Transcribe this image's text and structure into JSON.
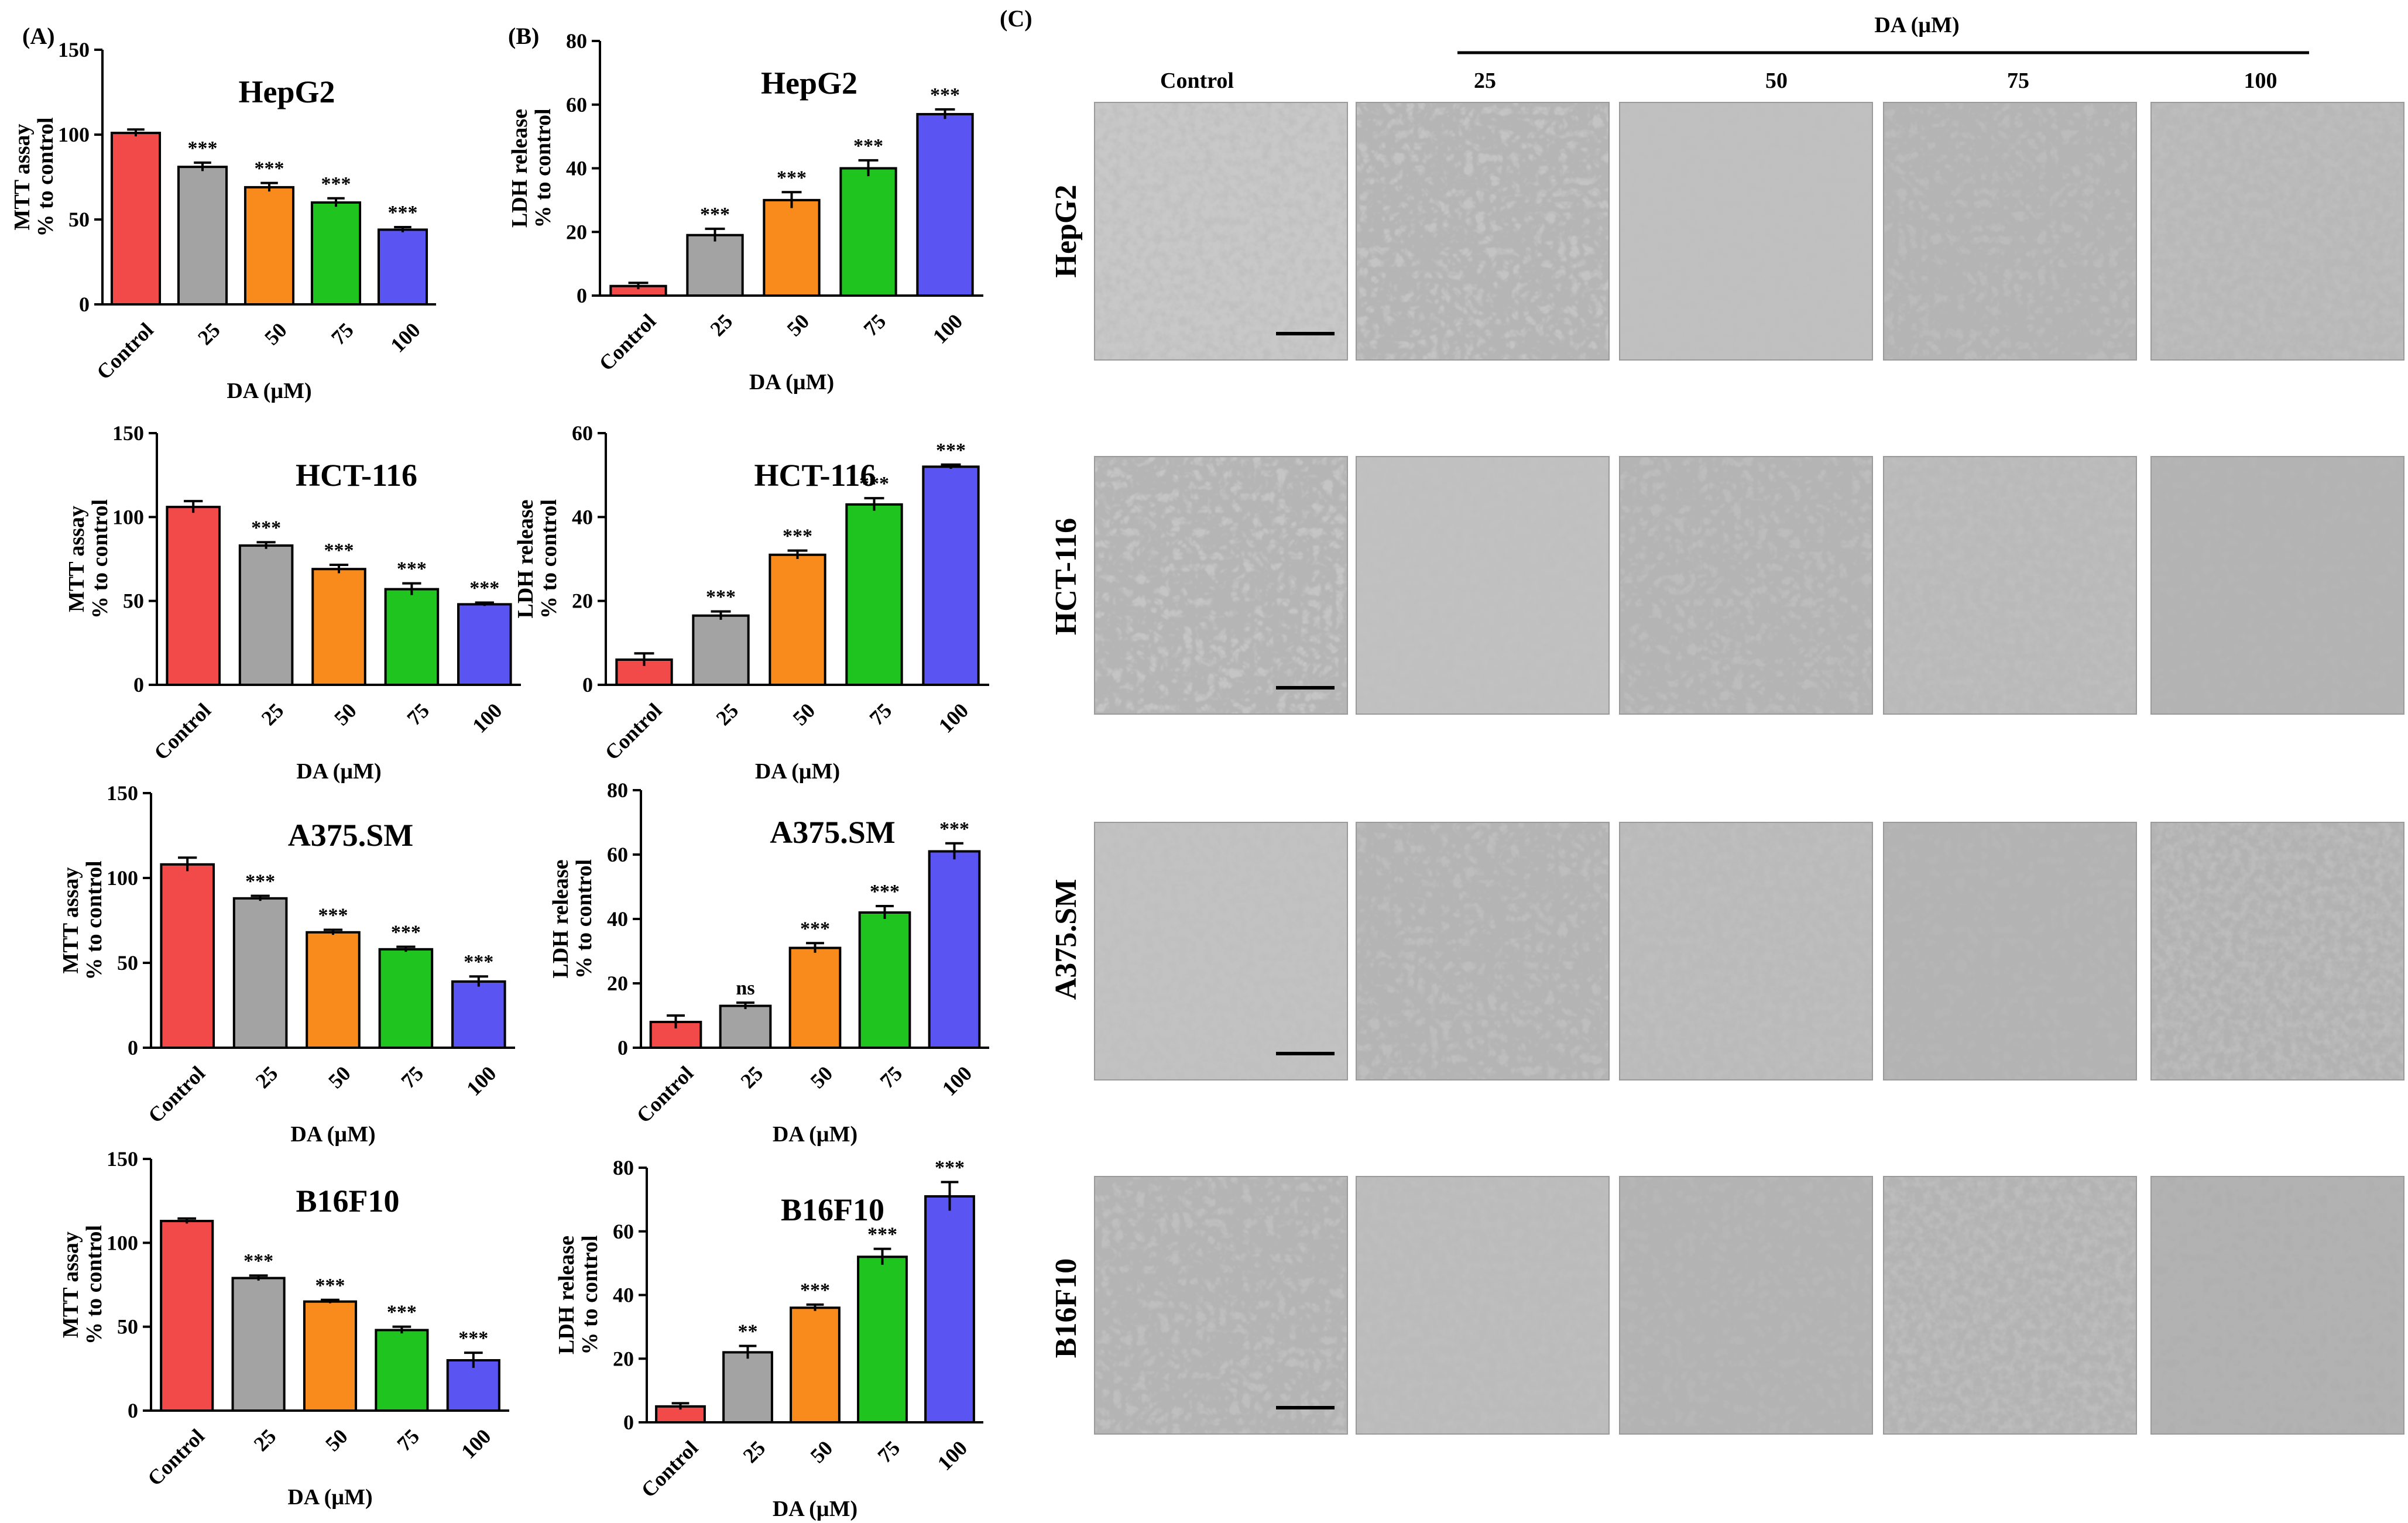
{
  "panels": {
    "a": "(A)",
    "b": "(B)",
    "c": "(C)"
  },
  "micrographs": {
    "header": "DA (µM)",
    "columns": [
      "Control",
      "25",
      "50",
      "75",
      "100"
    ],
    "rows": [
      "HepG2",
      "HCT-116",
      "A375.SM",
      "B16F10"
    ]
  },
  "chart_data": [
    {
      "type": "bar",
      "panel": "A",
      "title": "HepG2",
      "xlabel": "DA (µM)",
      "ylabel_lines": [
        "MTT assay",
        "% to control"
      ],
      "categories": [
        "Control",
        "25",
        "50",
        "75",
        "100"
      ],
      "values": [
        101,
        81,
        69,
        60,
        44
      ],
      "errors": [
        2,
        2.5,
        2.5,
        2.5,
        1.5
      ],
      "significance": [
        "",
        "***",
        "***",
        "***",
        "***"
      ],
      "ylim": [
        0,
        150
      ],
      "yticks": [
        "0",
        "50",
        "100",
        "150"
      ],
      "colors": [
        "#f24949",
        "#a3a3a3",
        "#f88b1b",
        "#1fc41f",
        "#5a54f2"
      ],
      "grid": false
    },
    {
      "type": "bar",
      "panel": "A",
      "title": "HCT-116",
      "xlabel": "DA (µM)",
      "ylabel_lines": [
        "MTT assay",
        "% to control"
      ],
      "categories": [
        "Control",
        "25",
        "50",
        "75",
        "100"
      ],
      "values": [
        106,
        83,
        69,
        57,
        48
      ],
      "errors": [
        3.5,
        2,
        2.5,
        3.5,
        1
      ],
      "significance": [
        "",
        "***",
        "***",
        "***",
        "***"
      ],
      "ylim": [
        0,
        150
      ],
      "yticks": [
        "0",
        "50",
        "100",
        "150"
      ],
      "colors": [
        "#f24949",
        "#a3a3a3",
        "#f88b1b",
        "#1fc41f",
        "#5a54f2"
      ],
      "grid": false
    },
    {
      "type": "bar",
      "panel": "A",
      "title": "A375.SM",
      "xlabel": "DA (µM)",
      "ylabel_lines": [
        "MTT assay",
        "% to control"
      ],
      "categories": [
        "Control",
        "25",
        "50",
        "75",
        "100"
      ],
      "values": [
        108,
        88,
        68,
        58,
        39
      ],
      "errors": [
        4,
        1.5,
        1.5,
        1.5,
        3
      ],
      "significance": [
        "",
        "***",
        "***",
        "***",
        "***"
      ],
      "ylim": [
        0,
        150
      ],
      "yticks": [
        "0",
        "50",
        "100",
        "150"
      ],
      "colors": [
        "#f24949",
        "#a3a3a3",
        "#f88b1b",
        "#1fc41f",
        "#5a54f2"
      ],
      "grid": false
    },
    {
      "type": "bar",
      "panel": "A",
      "title": "B16F10",
      "xlabel": "DA (µM)",
      "ylabel_lines": [
        "MTT assay",
        "% to control"
      ],
      "categories": [
        "Control",
        "25",
        "50",
        "75",
        "100"
      ],
      "values": [
        113,
        79,
        65,
        48,
        30
      ],
      "errors": [
        1.5,
        1.5,
        1,
        2,
        4.5
      ],
      "significance": [
        "",
        "***",
        "***",
        "***",
        "***"
      ],
      "ylim": [
        0,
        150
      ],
      "yticks": [
        "0",
        "50",
        "100",
        "150"
      ],
      "colors": [
        "#f24949",
        "#a3a3a3",
        "#f88b1b",
        "#1fc41f",
        "#5a54f2"
      ],
      "grid": false
    },
    {
      "type": "bar",
      "panel": "B",
      "title": "HepG2",
      "xlabel": "DA (µM)",
      "ylabel_lines": [
        "LDH release",
        "% to control"
      ],
      "categories": [
        "Control",
        "25",
        "50",
        "75",
        "100"
      ],
      "values": [
        3,
        19,
        30,
        40,
        57
      ],
      "errors": [
        1,
        2,
        2.5,
        2.5,
        1.5
      ],
      "significance": [
        "",
        "***",
        "***",
        "***",
        "***"
      ],
      "ylim": [
        0,
        80
      ],
      "yticks": [
        "0",
        "20",
        "40",
        "60",
        "80"
      ],
      "colors": [
        "#f24949",
        "#a3a3a3",
        "#f88b1b",
        "#1fc41f",
        "#5a54f2"
      ],
      "grid": false
    },
    {
      "type": "bar",
      "panel": "B",
      "title": "HCT-116",
      "xlabel": "DA (µM)",
      "ylabel_lines": [
        "LDH release",
        "% to control"
      ],
      "categories": [
        "Control",
        "25",
        "50",
        "75",
        "100"
      ],
      "values": [
        6,
        16.5,
        31,
        43,
        52
      ],
      "errors": [
        1.5,
        1,
        1,
        1.5,
        0.5
      ],
      "significance": [
        "",
        "***",
        "***",
        "***",
        "***"
      ],
      "ylim": [
        0,
        60
      ],
      "yticks": [
        "0",
        "20",
        "40",
        "60"
      ],
      "colors": [
        "#f24949",
        "#a3a3a3",
        "#f88b1b",
        "#1fc41f",
        "#5a54f2"
      ],
      "grid": false
    },
    {
      "type": "bar",
      "panel": "B",
      "title": "A375.SM",
      "xlabel": "DA (µM)",
      "ylabel_lines": [
        "LDH release",
        "% to control"
      ],
      "categories": [
        "Control",
        "25",
        "50",
        "75",
        "100"
      ],
      "values": [
        8,
        13,
        31,
        42,
        61
      ],
      "errors": [
        2,
        1,
        1.5,
        2,
        2.5
      ],
      "significance": [
        "",
        "ns",
        "***",
        "***",
        "***"
      ],
      "ylim": [
        0,
        80
      ],
      "yticks": [
        "0",
        "20",
        "40",
        "60",
        "80"
      ],
      "colors": [
        "#f24949",
        "#a3a3a3",
        "#f88b1b",
        "#1fc41f",
        "#5a54f2"
      ],
      "grid": false
    },
    {
      "type": "bar",
      "panel": "B",
      "title": "B16F10",
      "xlabel": "DA (µM)",
      "ylabel_lines": [
        "LDH release",
        "% to control"
      ],
      "categories": [
        "Control",
        "25",
        "50",
        "75",
        "100"
      ],
      "values": [
        5,
        22,
        36,
        52,
        71
      ],
      "errors": [
        1,
        2,
        1,
        2.5,
        4.5
      ],
      "significance": [
        "",
        "**",
        "***",
        "***",
        "***"
      ],
      "ylim": [
        0,
        80
      ],
      "yticks": [
        "0",
        "20",
        "40",
        "60",
        "80"
      ],
      "colors": [
        "#f24949",
        "#a3a3a3",
        "#f88b1b",
        "#1fc41f",
        "#5a54f2"
      ],
      "grid": false
    }
  ]
}
